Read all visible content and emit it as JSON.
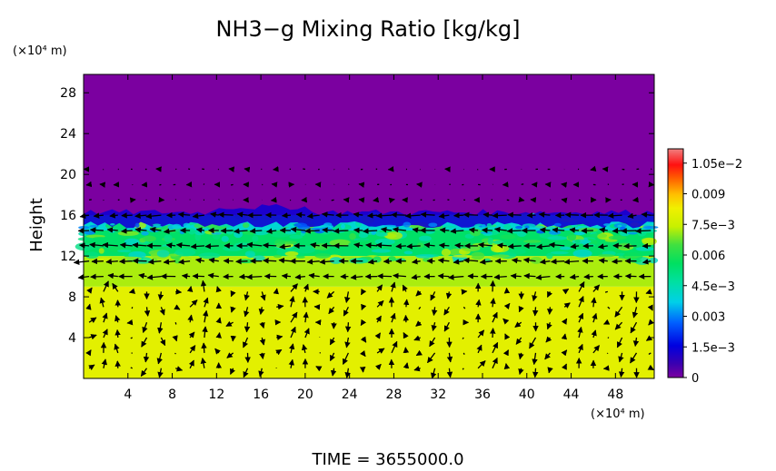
{
  "chart_data": {
    "type": "heatmap",
    "title": "NH3−g Mixing Ratio [kg/kg]",
    "ylabel": "Height",
    "x_unit_label": "(×10⁴ m)",
    "y_unit_label": "(×10⁴ m)",
    "footer": "TIME = 3655000.0",
    "xlim": [
      0,
      51.5
    ],
    "ylim": [
      0,
      29.8
    ],
    "x_ticks": [
      4,
      8,
      12,
      16,
      20,
      24,
      28,
      32,
      36,
      40,
      44,
      48
    ],
    "y_ticks": [
      4,
      8,
      12,
      16,
      20,
      24,
      28
    ],
    "x_tick_labels": [
      "4",
      "8",
      "12",
      "16",
      "20",
      "24",
      "28",
      "32",
      "36",
      "40",
      "44",
      "48"
    ],
    "y_tick_labels": [
      "4",
      "8",
      "12",
      "16",
      "20",
      "24",
      "28"
    ],
    "colorbar": {
      "min": 0,
      "max": 0.0112,
      "ticks": [
        0,
        0.0015,
        0.003,
        0.0045,
        0.006,
        0.0075,
        0.009,
        0.0105
      ],
      "tick_labels": [
        "0",
        "1.5e−3",
        "0.003",
        "4.5e−3",
        "0.006",
        "7.5e−3",
        "0.009",
        "1.05e−2"
      ]
    },
    "field_layers": [
      {
        "from_height": 0,
        "to_height": 9,
        "mixing_ratio": 0.008
      },
      {
        "from_height": 9,
        "to_height": 12,
        "mixing_ratio": 0.0072
      },
      {
        "from_height": 12,
        "to_height": 14.5,
        "mixing_ratio": 0.0055
      },
      {
        "from_height": 14.5,
        "to_height": 16,
        "mixing_ratio": 0.004
      },
      {
        "from_height": 16,
        "to_height": 29.8,
        "mixing_ratio": 0.0
      }
    ],
    "tropopause_height": 16.3
  }
}
